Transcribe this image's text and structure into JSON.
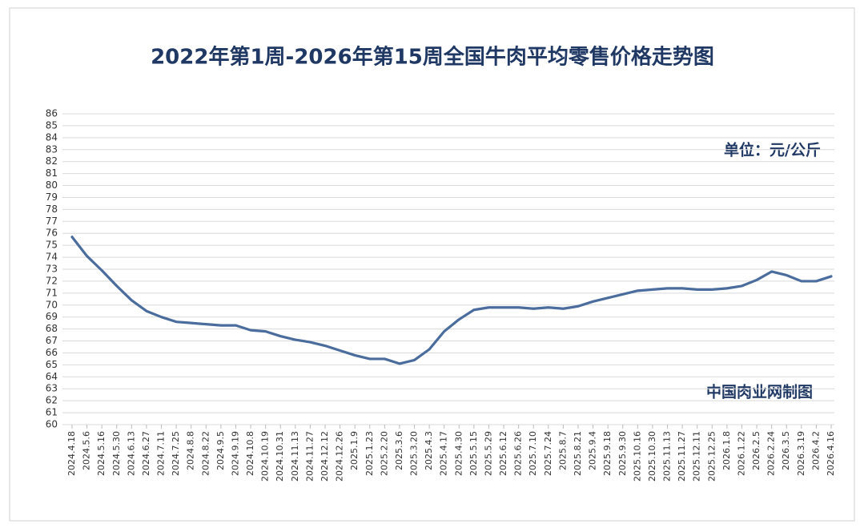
{
  "chart_data": {
    "type": "line",
    "title": "2022年第1周-2026年第15周全国牛肉平均零售价格走势图",
    "unit_note": "单位：元/公斤",
    "source_note": "中国肉业网制图",
    "categories": [
      "2024.4.18",
      "2024.5.6",
      "2024.5.16",
      "2024.5.30",
      "2024.6.13",
      "2024.6.27",
      "2024.7.11",
      "2024.7.25",
      "2024.8.8",
      "2024.8.22",
      "2024.9.5",
      "2024.9.19",
      "2024.10.8",
      "2024.10.19",
      "2024.10.31",
      "2024.11.13",
      "2024.11.27",
      "2024.12.12",
      "2024.12.26",
      "2025.1.9",
      "2025.1.23",
      "2025.2.20",
      "2025.3.6",
      "2025.3.20",
      "2025.4.3",
      "2025.4.17",
      "2025.4.30",
      "2025.5.15",
      "2025.5.29",
      "2025.6.12",
      "2025.6.26",
      "2025.7.10",
      "2025.7.24",
      "2025.8.7",
      "2025.8.21",
      "2025.9.4",
      "2025.9.18",
      "2025.9.30",
      "2025.10.16",
      "2025.10.30",
      "2025.11.13",
      "2025.11.27",
      "2025.12.11",
      "2025.12.25",
      "2026.1.8",
      "2026.1.22",
      "2026.2.5",
      "2026.2.24",
      "2026.3.5",
      "2026.3.19",
      "2026.4.2",
      "2026.4.16"
    ],
    "values": [
      75.7,
      74.1,
      72.9,
      71.6,
      70.4,
      69.5,
      69.0,
      68.6,
      68.5,
      68.4,
      68.3,
      68.3,
      67.9,
      67.8,
      67.4,
      67.1,
      66.9,
      66.6,
      66.2,
      65.8,
      65.5,
      65.5,
      65.1,
      65.4,
      66.3,
      67.8,
      68.8,
      69.6,
      69.8,
      69.8,
      69.8,
      69.7,
      69.8,
      69.7,
      69.9,
      70.3,
      70.6,
      70.9,
      71.2,
      71.3,
      71.4,
      71.4,
      71.3,
      71.3,
      71.4,
      71.6,
      72.1,
      72.8,
      72.5,
      72.0,
      72.0,
      72.4
    ],
    "color": "#4a6d9e",
    "ylim": [
      60,
      86
    ],
    "yticks": [
      60,
      61,
      62,
      63,
      64,
      65,
      66,
      67,
      68,
      69,
      70,
      71,
      72,
      73,
      74,
      75,
      76,
      77,
      78,
      79,
      80,
      81,
      82,
      83,
      84,
      85,
      86
    ],
    "grid": true
  }
}
